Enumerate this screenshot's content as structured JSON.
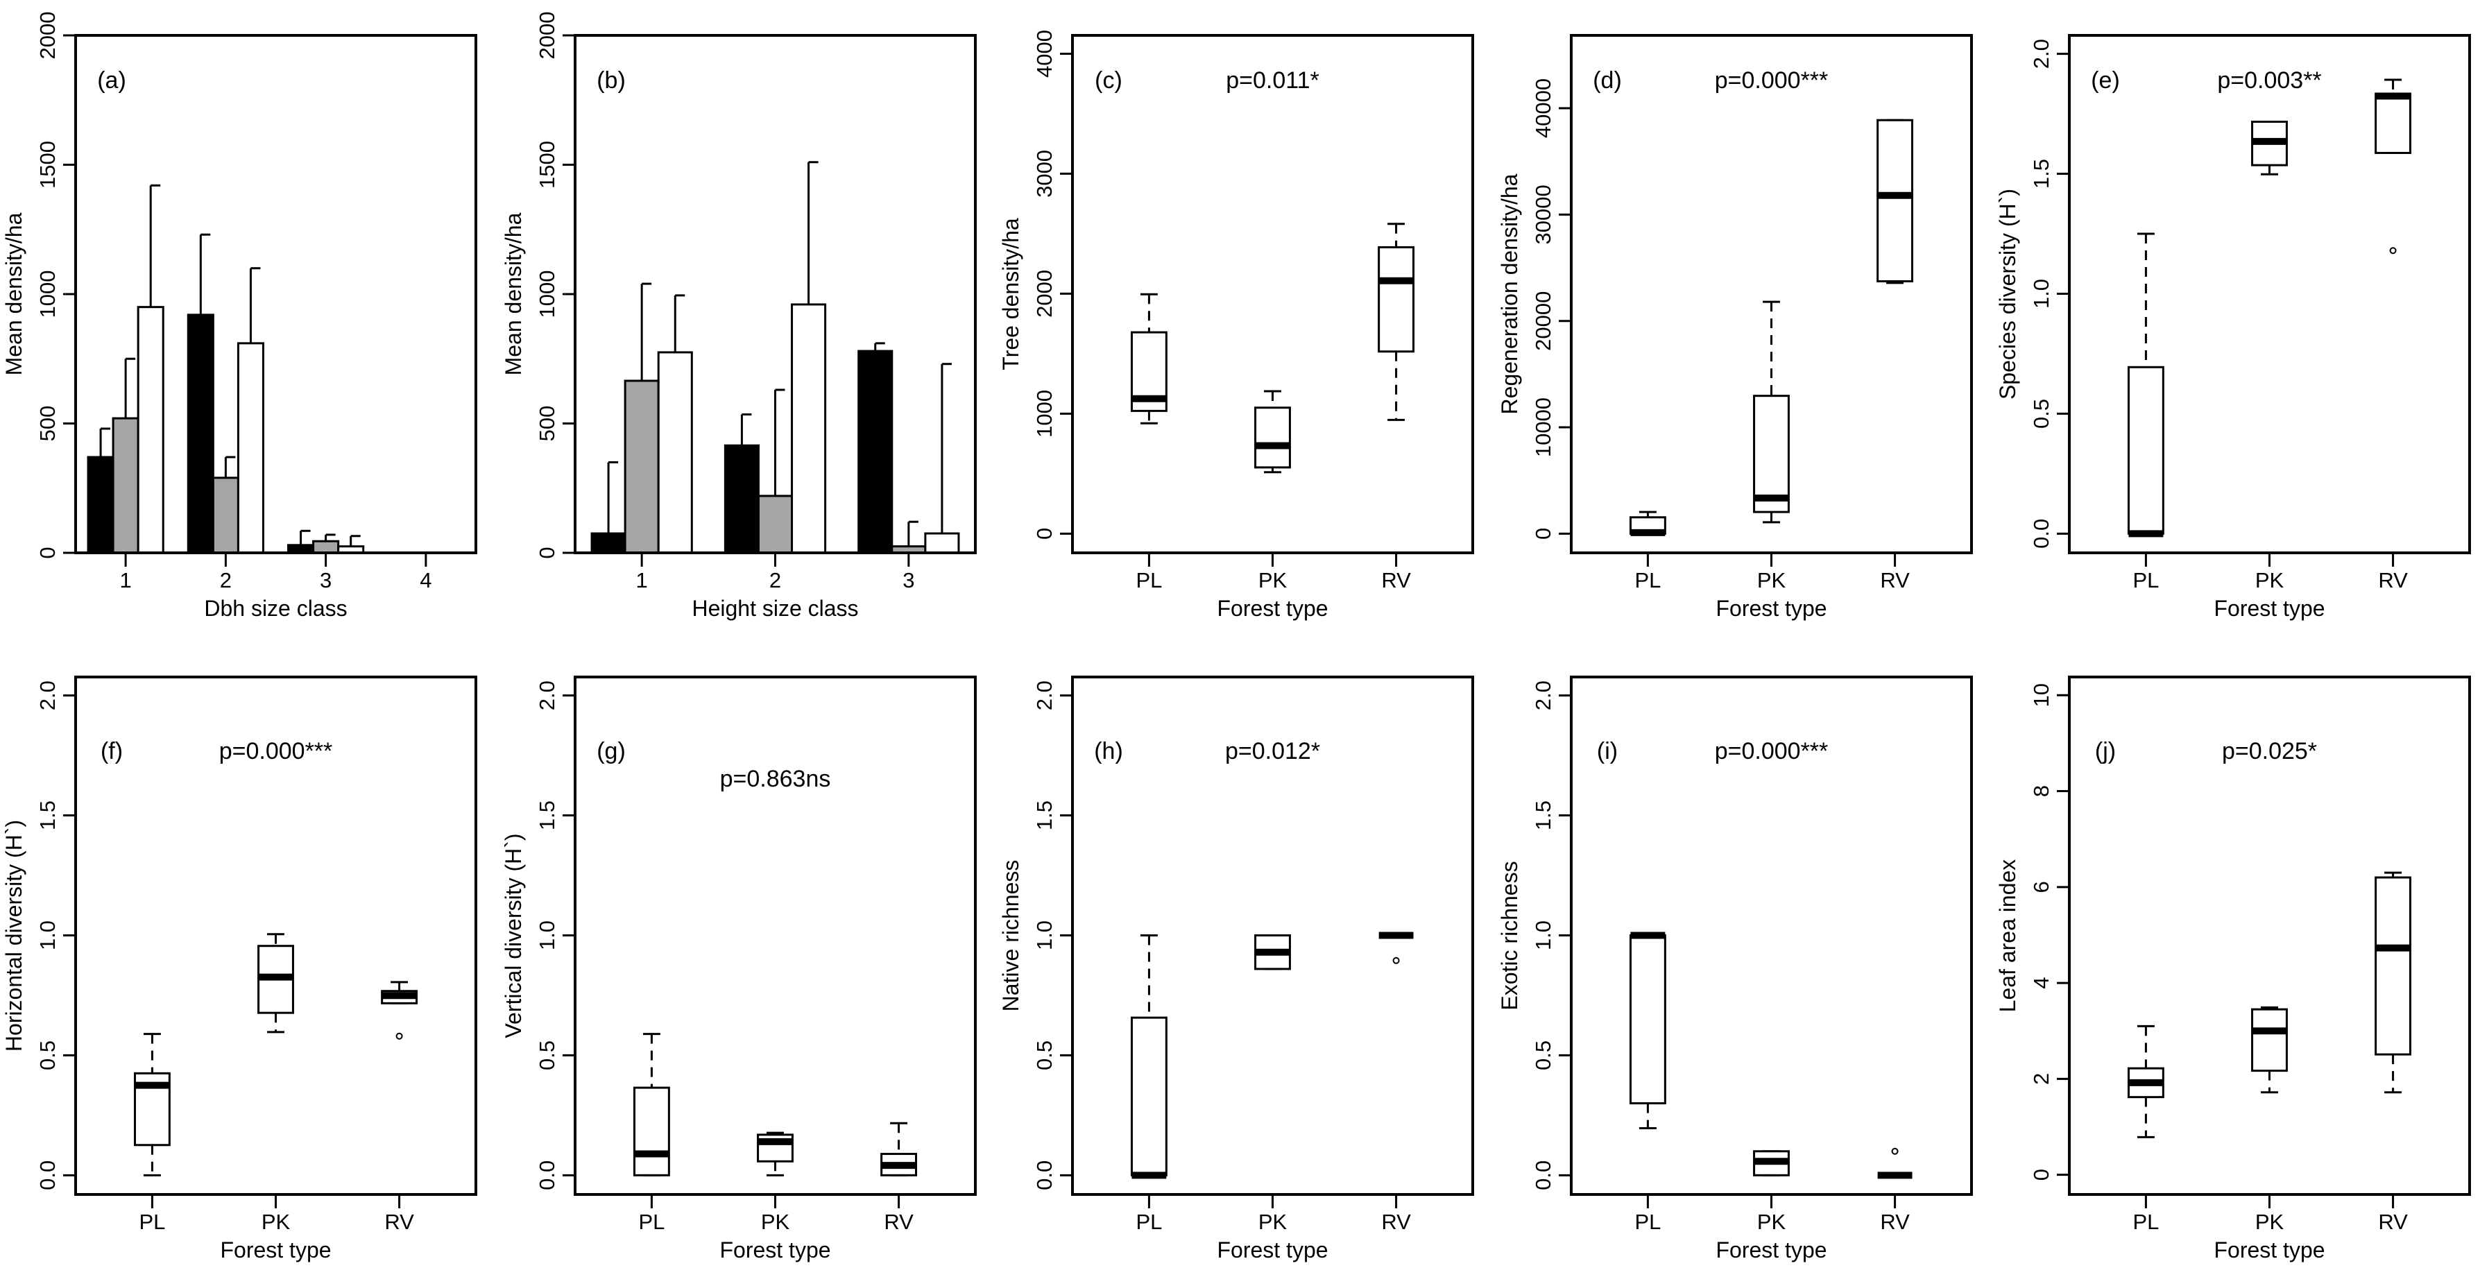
{
  "chart_data": [
    {
      "type": "bar",
      "panel_label": "(a)",
      "xlabel": "Dbh size class",
      "ylabel": "Mean density/ha",
      "categories": [
        "1",
        "2",
        "3",
        "4"
      ],
      "ylim": [
        0,
        2000
      ],
      "yticks": [
        "0",
        "500",
        "1000",
        "1500",
        "2000"
      ],
      "series": [
        {
          "color": "#000000",
          "values": [
            370,
            920,
            30,
            0
          ],
          "error_upper": [
            480,
            1230,
            85,
            null
          ]
        },
        {
          "color": "#a6a6a6",
          "values": [
            520,
            290,
            45,
            0
          ],
          "error_upper": [
            750,
            370,
            70,
            null
          ]
        },
        {
          "color": "#ffffff",
          "values": [
            950,
            810,
            25,
            0
          ],
          "error_upper": [
            1420,
            1100,
            65,
            null
          ]
        }
      ]
    },
    {
      "type": "bar",
      "panel_label": "(b)",
      "xlabel": "Height size class",
      "ylabel": "Mean density/ha",
      "categories": [
        "1",
        "2",
        "3"
      ],
      "ylim": [
        0,
        2000
      ],
      "yticks": [
        "0",
        "500",
        "1000",
        "1500",
        "2000"
      ],
      "series": [
        {
          "color": "#000000",
          "values": [
            75,
            415,
            780
          ],
          "error_upper": [
            350,
            535,
            810
          ]
        },
        {
          "color": "#a6a6a6",
          "values": [
            665,
            220,
            25
          ],
          "error_upper": [
            1040,
            630,
            120
          ]
        },
        {
          "color": "#ffffff",
          "values": [
            775,
            960,
            75
          ],
          "error_upper": [
            995,
            1510,
            730
          ]
        }
      ]
    },
    {
      "type": "box",
      "panel_label": "(c)",
      "p_value": "p=0.011*",
      "xlabel": "Forest type",
      "ylabel": "Tree density/ha",
      "categories": [
        "PL",
        "PK",
        "RV"
      ],
      "ylim": [
        -160,
        4153
      ],
      "yticks": [
        "0",
        "1000",
        "2000",
        "3000",
        "4000"
      ],
      "boxes": [
        {
          "min": 920,
          "q1": 1023,
          "median": 1125,
          "q3": 1678,
          "max": 1995,
          "outliers": []
        },
        {
          "min": 512,
          "q1": 552,
          "median": 733,
          "q3": 1050,
          "max": 1187,
          "outliers": []
        },
        {
          "min": 948,
          "q1": 1518,
          "median": 2108,
          "q3": 2387,
          "max": 2582,
          "outliers": []
        }
      ]
    },
    {
      "type": "box",
      "panel_label": "(d)",
      "p_value": "p=0.000***",
      "xlabel": "Forest type",
      "ylabel": "Regeneration density/ha",
      "categories": [
        "PL",
        "PK",
        "RV"
      ],
      "ylim": [
        -1800,
        46850
      ],
      "yticks": [
        "0",
        "10000",
        "20000",
        "30000",
        "40000"
      ],
      "boxes": [
        {
          "min": 0,
          "q1": 0,
          "median": 100,
          "q3": 1540,
          "max": 2040,
          "outliers": []
        },
        {
          "min": 1080,
          "q1": 2040,
          "median": 3350,
          "q3": 12960,
          "max": 21800,
          "outliers": []
        },
        {
          "min": 23580,
          "q1": 23730,
          "median": 31800,
          "q3": 38880,
          "max": 38880,
          "outliers": []
        }
      ]
    },
    {
      "type": "box",
      "panel_label": "(e)",
      "p_value": "p=0.003**",
      "xlabel": "Forest type",
      "ylabel": "Species diversity (H`)",
      "categories": [
        "PL",
        "PK",
        "RV"
      ],
      "ylim": [
        -0.08,
        2.077
      ],
      "yticks": [
        "0.0",
        "0.5",
        "1.0",
        "1.5",
        "2.0"
      ],
      "boxes": [
        {
          "min": 0,
          "q1": 0,
          "median": 0,
          "q3": 0.694,
          "max": 1.25,
          "outliers": []
        },
        {
          "min": 1.498,
          "q1": 1.536,
          "median": 1.635,
          "q3": 1.717,
          "max": 1.717,
          "outliers": []
        },
        {
          "min": 1.587,
          "q1": 1.587,
          "median": 1.824,
          "q3": 1.834,
          "max": 1.892,
          "outliers": [
            1.18
          ]
        }
      ]
    },
    {
      "type": "box",
      "panel_label": "(f)",
      "p_value": "p=0.000***",
      "xlabel": "Forest type",
      "ylabel": "Horizontal diversity (H`)",
      "categories": [
        "PL",
        "PK",
        "RV"
      ],
      "ylim": [
        -0.08,
        2.077
      ],
      "yticks": [
        "0.0",
        "0.5",
        "1.0",
        "1.5",
        "2.0"
      ],
      "boxes": [
        {
          "min": 0,
          "q1": 0.126,
          "median": 0.375,
          "q3": 0.425,
          "max": 0.589,
          "outliers": []
        },
        {
          "min": 0.597,
          "q1": 0.677,
          "median": 0.826,
          "q3": 0.956,
          "max": 1.005,
          "outliers": []
        },
        {
          "min": 0.717,
          "q1": 0.717,
          "median": 0.749,
          "q3": 0.768,
          "max": 0.805,
          "outliers": [
            0.58
          ]
        }
      ]
    },
    {
      "type": "box",
      "panel_label": "(g)",
      "p_value": "p=0.863ns",
      "xlabel": "Forest type",
      "ylabel": "Vertical diversity (H`)",
      "categories": [
        "PL",
        "PK",
        "RV"
      ],
      "ylim": [
        -0.08,
        2.077
      ],
      "yticks": [
        "0.0",
        "0.5",
        "1.0",
        "1.5",
        "2.0"
      ],
      "boxes": [
        {
          "min": 0,
          "q1": 0,
          "median": 0.089,
          "q3": 0.365,
          "max": 0.589,
          "outliers": []
        },
        {
          "min": 0,
          "q1": 0.058,
          "median": 0.14,
          "q3": 0.169,
          "max": 0.177,
          "outliers": []
        },
        {
          "min": 0,
          "q1": 0,
          "median": 0.041,
          "q3": 0.089,
          "max": 0.217,
          "outliers": []
        }
      ]
    },
    {
      "type": "box",
      "panel_label": "(h)",
      "p_value": "p=0.012*",
      "xlabel": "Forest type",
      "ylabel": "Native richness",
      "categories": [
        "PL",
        "PK",
        "RV"
      ],
      "ylim": [
        -0.08,
        2.077
      ],
      "yticks": [
        "0.0",
        "0.5",
        "1.0",
        "1.5",
        "2.0"
      ],
      "boxes": [
        {
          "min": 0,
          "q1": 0,
          "median": 0,
          "q3": 0.657,
          "max": 1.0,
          "outliers": []
        },
        {
          "min": 0.86,
          "q1": 0.86,
          "median": 0.93,
          "q3": 1.0,
          "max": 1.0,
          "outliers": []
        },
        {
          "min": 1.0,
          "q1": 1.0,
          "median": 1.0,
          "q3": 1.0,
          "max": 1.0,
          "outliers": [
            0.895
          ]
        }
      ]
    },
    {
      "type": "box",
      "panel_label": "(i)",
      "p_value": "p=0.000***",
      "xlabel": "Forest type",
      "ylabel": "Exotic richness",
      "categories": [
        "PL",
        "PK",
        "RV"
      ],
      "ylim": [
        -0.08,
        2.077
      ],
      "yticks": [
        "0.0",
        "0.5",
        "1.0",
        "1.5",
        "2.0"
      ],
      "boxes": [
        {
          "min": 0.196,
          "q1": 0.3,
          "median": 1.0,
          "q3": 1.0,
          "max": 1.0,
          "outliers": []
        },
        {
          "min": 0,
          "q1": 0,
          "median": 0.058,
          "q3": 0.1,
          "max": 0.1,
          "outliers": []
        },
        {
          "min": 0,
          "q1": 0,
          "median": 0,
          "q3": 0,
          "max": 0,
          "outliers": [
            0.1
          ]
        }
      ]
    },
    {
      "type": "box",
      "panel_label": "(j)",
      "p_value": "p=0.025*",
      "xlabel": "Forest type",
      "ylabel": "Leaf area index",
      "categories": [
        "PL",
        "PK",
        "RV"
      ],
      "ylim": [
        -0.41,
        10.38
      ],
      "yticks": [
        "0",
        "2",
        "4",
        "6",
        "8",
        "10"
      ],
      "boxes": [
        {
          "min": 0.785,
          "q1": 1.62,
          "median": 1.92,
          "q3": 2.22,
          "max": 3.1,
          "outliers": []
        },
        {
          "min": 1.72,
          "q1": 2.17,
          "median": 3.0,
          "q3": 3.45,
          "max": 3.49,
          "outliers": []
        },
        {
          "min": 1.72,
          "q1": 2.51,
          "median": 4.73,
          "q3": 6.2,
          "max": 6.3,
          "outliers": []
        }
      ]
    }
  ]
}
